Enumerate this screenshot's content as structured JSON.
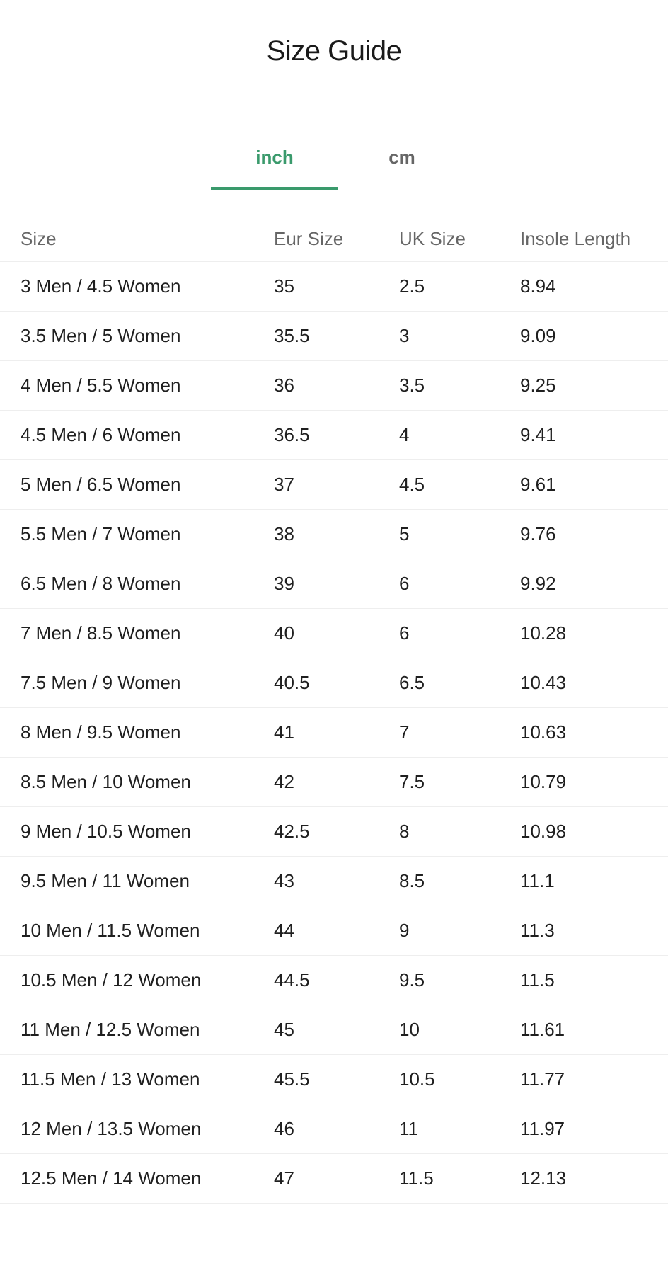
{
  "title": "Size Guide",
  "tabs": [
    {
      "label": "inch",
      "active": true
    },
    {
      "label": "cm",
      "active": false
    }
  ],
  "accent_color": "#3a9a6c",
  "table": {
    "headers": [
      "Size",
      "Eur Size",
      "UK Size",
      "Insole Length"
    ],
    "rows": [
      [
        "3 Men / 4.5 Women",
        "35",
        "2.5",
        "8.94"
      ],
      [
        "3.5 Men / 5 Women",
        "35.5",
        "3",
        "9.09"
      ],
      [
        "4 Men / 5.5 Women",
        "36",
        "3.5",
        "9.25"
      ],
      [
        "4.5 Men / 6 Women",
        "36.5",
        "4",
        "9.41"
      ],
      [
        "5 Men / 6.5 Women",
        "37",
        "4.5",
        "9.61"
      ],
      [
        "5.5 Men / 7 Women",
        "38",
        "5",
        "9.76"
      ],
      [
        "6.5 Men / 8 Women",
        "39",
        "6",
        "9.92"
      ],
      [
        "7 Men / 8.5 Women",
        "40",
        "6",
        "10.28"
      ],
      [
        "7.5 Men / 9 Women",
        "40.5",
        "6.5",
        "10.43"
      ],
      [
        "8 Men / 9.5 Women",
        "41",
        "7",
        "10.63"
      ],
      [
        "8.5 Men / 10 Women",
        "42",
        "7.5",
        "10.79"
      ],
      [
        "9 Men / 10.5 Women",
        "42.5",
        "8",
        "10.98"
      ],
      [
        "9.5 Men / 11 Women",
        "43",
        "8.5",
        "11.1"
      ],
      [
        "10 Men / 11.5 Women",
        "44",
        "9",
        "11.3"
      ],
      [
        "10.5 Men / 12 Women",
        "44.5",
        "9.5",
        "11.5"
      ],
      [
        "11 Men / 12.5 Women",
        "45",
        "10",
        "11.61"
      ],
      [
        "11.5 Men / 13 Women",
        "45.5",
        "10.5",
        "11.77"
      ],
      [
        "12 Men / 13.5 Women",
        "46",
        "11",
        "11.97"
      ],
      [
        "12.5 Men / 14 Women",
        "47",
        "11.5",
        "12.13"
      ]
    ]
  }
}
